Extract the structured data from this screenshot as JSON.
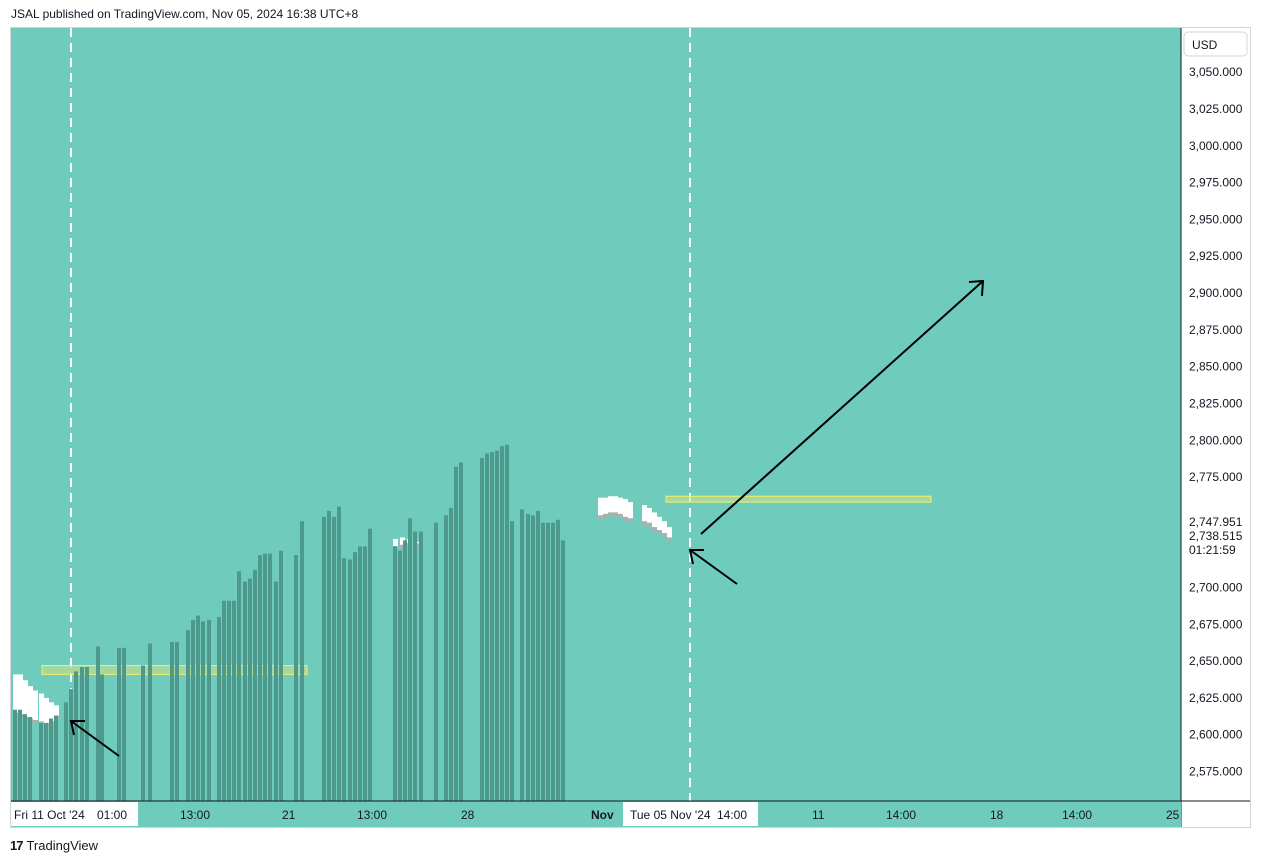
{
  "header": {
    "text": "JSAL published on TradingView.com, Nov 05, 2024 16:38 UTC+8"
  },
  "footer": {
    "logo_glyph": "17",
    "brand": "TradingView"
  },
  "colors": {
    "background": "#6fcbbc",
    "bar": "#4d9a8d",
    "wick_white": "#ffffff",
    "wick_gray": "#a8b1ae",
    "zone_fill": "#cfe08a",
    "zone_border": "#f2f06a",
    "arrow": "#000000",
    "dashed_line": "#ffffff"
  },
  "currency_button": "USD",
  "price_labels": {
    "last_price": "2,747.951",
    "prev_price": "2,738.515",
    "countdown": "01:21:59"
  },
  "chart_data": {
    "type": "bar",
    "ylim": [
      2555,
      3080
    ],
    "y_ticks": [
      3050,
      3025,
      3000,
      2975,
      2950,
      2925,
      2900,
      2875,
      2850,
      2825,
      2800,
      2775,
      2700,
      2675,
      2650,
      2625,
      2600,
      2575
    ],
    "y_tick_labels": [
      "3,050.000",
      "3,025.000",
      "3,000.000",
      "2,975.000",
      "2,950.000",
      "2,925.000",
      "2,900.000",
      "2,875.000",
      "2,850.000",
      "2,825.000",
      "2,800.000",
      "2,775.000",
      "2,700.000",
      "2,675.000",
      "2,650.000",
      "2,625.000",
      "2,600.000",
      "2,575.000"
    ],
    "x_tick_labels": [
      {
        "label": "Fri 11 Oct '24",
        "highlight": true
      },
      {
        "label": "01:00",
        "highlight": true
      },
      {
        "label": "13:00",
        "highlight": false
      },
      {
        "label": "21",
        "highlight": false
      },
      {
        "label": "13:00",
        "highlight": false
      },
      {
        "label": "28",
        "highlight": false
      },
      {
        "label": "Nov",
        "highlight": false,
        "bold": true
      },
      {
        "label": "Tue 05 Nov '24",
        "highlight": true
      },
      {
        "label": "14:00",
        "highlight": true
      },
      {
        "label": "11",
        "highlight": false
      },
      {
        "label": "14:00",
        "highlight": false
      },
      {
        "label": "18",
        "highlight": false
      },
      {
        "label": "14:00",
        "highlight": false
      },
      {
        "label": "25",
        "highlight": false
      }
    ],
    "bars": [
      2617,
      2617,
      2614,
      2612,
      2608,
      2608,
      2611,
      2613,
      2622,
      2631,
      2643,
      2646,
      2646,
      2660,
      2641,
      2659,
      2659,
      2647,
      2662,
      2663,
      2663,
      2671,
      2678,
      2681,
      2677,
      2678,
      2680,
      2691,
      2691,
      2691,
      2711,
      2704,
      2706,
      2712,
      2722,
      2723,
      2723,
      2704,
      2725,
      2722,
      2745,
      2748,
      2752,
      2748,
      2755,
      2720,
      2719,
      2724,
      2728,
      2728,
      2740,
      2728,
      2725,
      2732,
      2747,
      2738,
      2738,
      2744,
      2749,
      2754,
      2782,
      2785,
      2788,
      2791,
      2792,
      2793,
      2796,
      2797,
      2745,
      2753,
      2750,
      2749,
      2752,
      2744,
      2744,
      2744,
      2746,
      2732
    ],
    "ghost_bars": [
      {
        "from": 2641,
        "to": 2613
      },
      {
        "from": 2641,
        "to": 2612
      },
      {
        "from": 2637,
        "to": 2610
      },
      {
        "from": 2633,
        "to": 2609
      },
      {
        "from": 2630,
        "to": 2608
      },
      {
        "from": 2628,
        "to": 2607
      },
      {
        "from": 2625,
        "to": 2606
      },
      {
        "from": 2622,
        "to": 2607
      },
      {
        "from": 2620,
        "to": 2611
      },
      {
        "from": 2726,
        "to": 2733
      },
      {
        "from": 2727,
        "to": 2734
      },
      {
        "from": 2728,
        "to": 2733
      },
      {
        "from": 2728,
        "to": 2731
      },
      {
        "from": 2761,
        "to": 2747
      },
      {
        "from": 2761,
        "to": 2748
      },
      {
        "from": 2762,
        "to": 2749
      },
      {
        "from": 2762,
        "to": 2749
      },
      {
        "from": 2761,
        "to": 2748
      },
      {
        "from": 2760,
        "to": 2746
      },
      {
        "from": 2758,
        "to": 2745
      },
      {
        "from": 2756,
        "to": 2743
      },
      {
        "from": 2754,
        "to": 2742
      },
      {
        "from": 2751,
        "to": 2739
      },
      {
        "from": 2748,
        "to": 2737
      },
      {
        "from": 2745,
        "to": 2735
      },
      {
        "from": 2741,
        "to": 2732
      }
    ],
    "zones": [
      {
        "y_low": 2641,
        "y_high": 2647
      },
      {
        "y_low": 2758,
        "y_high": 2762
      }
    ]
  }
}
